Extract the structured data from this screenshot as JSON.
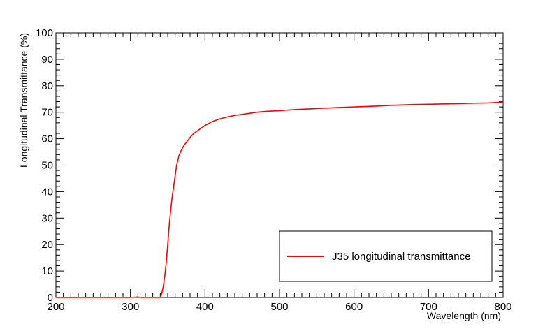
{
  "chart_data": {
    "type": "line",
    "title": "",
    "xlabel": "Wavelength (nm)",
    "ylabel": "Longitudinal Transmittance (%)",
    "xlim": [
      200,
      800
    ],
    "ylim": [
      0,
      100
    ],
    "x_ticks": [
      200,
      300,
      400,
      500,
      600,
      700,
      800
    ],
    "y_ticks": [
      0,
      10,
      20,
      30,
      40,
      50,
      60,
      70,
      80,
      90,
      100
    ],
    "grid": false,
    "legend_position": "bottom-right",
    "series": [
      {
        "name": "J35 longitudinal transmittance",
        "color": "#ff0000",
        "x": [
          200,
          250,
          300,
          310,
          315,
          320,
          330,
          340,
          342,
          344,
          346,
          348,
          350,
          352,
          354,
          356,
          358,
          360,
          362,
          365,
          368,
          372,
          376,
          380,
          385,
          390,
          395,
          400,
          410,
          420,
          430,
          440,
          450,
          460,
          470,
          480,
          500,
          520,
          550,
          580,
          600,
          630,
          650,
          680,
          700,
          730,
          760,
          780,
          800
        ],
        "y": [
          0,
          0,
          0,
          0.2,
          0,
          0,
          0,
          0,
          1.5,
          4,
          8,
          13,
          20,
          27,
          33,
          38,
          42,
          46,
          50,
          53.5,
          55.5,
          57.5,
          59,
          60.5,
          62,
          63,
          64,
          65,
          66.5,
          67.5,
          68.2,
          68.8,
          69.2,
          69.6,
          70,
          70.3,
          70.6,
          71,
          71.4,
          71.8,
          72,
          72.3,
          72.6,
          72.9,
          73,
          73.2,
          73.4,
          73.5,
          73.8
        ]
      }
    ]
  }
}
